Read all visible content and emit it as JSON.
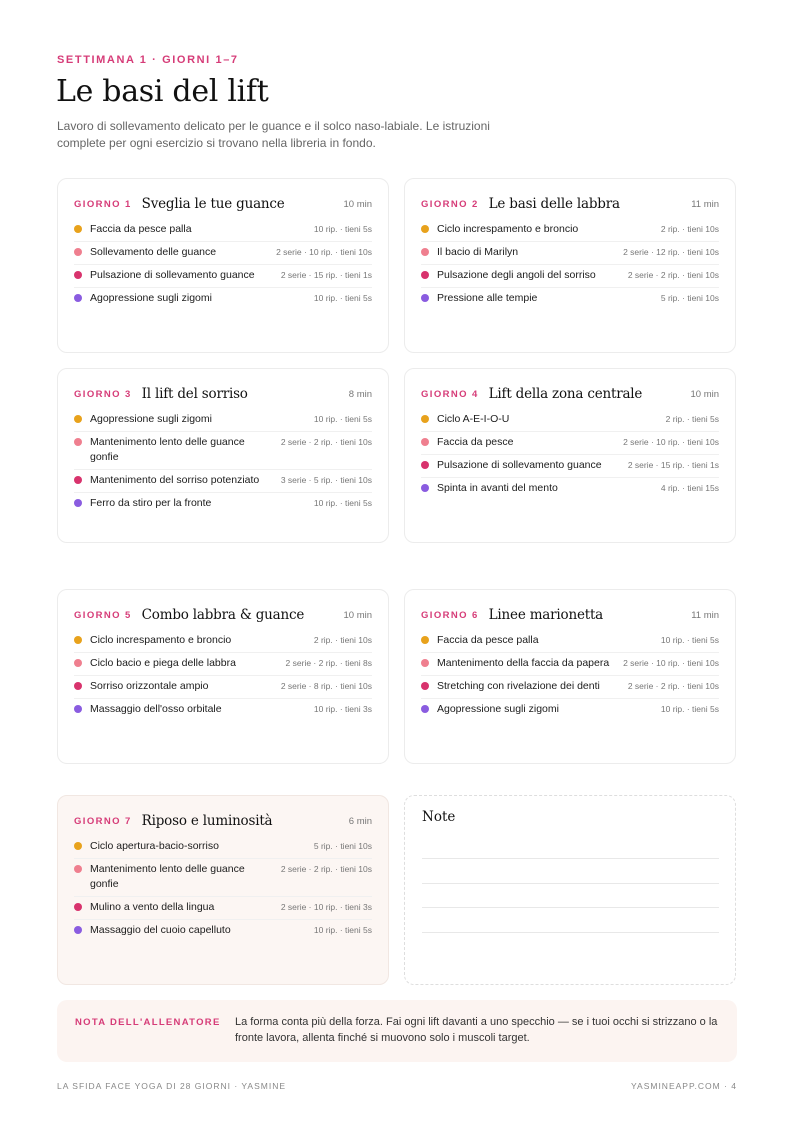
{
  "header": {
    "eyebrow": "SETTIMANA 1 · GIORNI 1–7",
    "title": "Le basi del lift",
    "intro": "Lavoro di sollevamento delicato per le guance e il solco naso-labiale. Le istruzioni complete per ogni esercizio si trovano nella libreria in fondo."
  },
  "colors": {
    "accent": "#d63c78",
    "dot_orange": "#e8a21c",
    "dot_pink": "#ef7f8f",
    "dot_magenta": "#d8336d",
    "dot_purple": "#8a5ce0"
  },
  "days": [
    {
      "label": "GIORNO 1",
      "title": "Sveglia le tue guance",
      "minutes": "10 min",
      "exercises": [
        {
          "name": "Faccia da pesce palla",
          "meta": "10 rip. · tieni 5s"
        },
        {
          "name": "Sollevamento delle guance",
          "meta": "2 serie · 10 rip. · tieni 10s"
        },
        {
          "name": "Pulsazione di sollevamento guance",
          "meta": "2 serie · 15 rip. · tieni 1s"
        },
        {
          "name": "Agopressione sugli zigomi",
          "meta": "10 rip. · tieni 5s"
        }
      ]
    },
    {
      "label": "GIORNO 2",
      "title": "Le basi delle labbra",
      "minutes": "11 min",
      "exercises": [
        {
          "name": "Ciclo increspamento e broncio",
          "meta": "2 rip. · tieni 10s"
        },
        {
          "name": "Il bacio di Marilyn",
          "meta": "2 serie · 12 rip. · tieni 10s"
        },
        {
          "name": "Pulsazione degli angoli del sorriso",
          "meta": "2 serie · 2 rip. · tieni 10s"
        },
        {
          "name": "Pressione alle tempie",
          "meta": "5 rip. · tieni 10s"
        }
      ]
    },
    {
      "label": "GIORNO 3",
      "title": "Il lift del sorriso",
      "minutes": "8 min",
      "exercises": [
        {
          "name": "Agopressione sugli zigomi",
          "meta": "10 rip. · tieni 5s"
        },
        {
          "name": "Mantenimento lento delle guance gonfie",
          "meta": "2 serie · 2 rip. · tieni 10s"
        },
        {
          "name": "Mantenimento del sorriso potenziato",
          "meta": "3 serie · 5 rip. · tieni 10s"
        },
        {
          "name": "Ferro da stiro per la fronte",
          "meta": "10 rip. · tieni 5s"
        }
      ]
    },
    {
      "label": "GIORNO 4",
      "title": "Lift della zona centrale",
      "minutes": "10 min",
      "exercises": [
        {
          "name": "Ciclo A-E-I-O-U",
          "meta": "2 rip. · tieni 5s"
        },
        {
          "name": "Faccia da pesce",
          "meta": "2 serie · 10 rip. · tieni 10s"
        },
        {
          "name": "Pulsazione di sollevamento guance",
          "meta": "2 serie · 15 rip. · tieni 1s"
        },
        {
          "name": "Spinta in avanti del mento",
          "meta": "4 rip. · tieni 15s"
        }
      ]
    },
    {
      "label": "GIORNO 5",
      "title": "Combo labbra & guance",
      "minutes": "10 min",
      "exercises": [
        {
          "name": "Ciclo increspamento e broncio",
          "meta": "2 rip. · tieni 10s"
        },
        {
          "name": "Ciclo bacio e piega delle labbra",
          "meta": "2 serie · 2 rip. · tieni 8s"
        },
        {
          "name": "Sorriso orizzontale ampio",
          "meta": "2 serie · 8 rip. · tieni 10s"
        },
        {
          "name": "Massaggio dell'osso orbitale",
          "meta": "10 rip. · tieni 3s"
        }
      ]
    },
    {
      "label": "GIORNO 6",
      "title": "Linee marionetta",
      "minutes": "11 min",
      "exercises": [
        {
          "name": "Faccia da pesce palla",
          "meta": "10 rip. · tieni 5s"
        },
        {
          "name": "Mantenimento della faccia da papera",
          "meta": "2 serie · 10 rip. · tieni 10s"
        },
        {
          "name": "Stretching con rivelazione dei denti",
          "meta": "2 serie · 2 rip. · tieni 10s"
        },
        {
          "name": "Agopressione sugli zigomi",
          "meta": "10 rip. · tieni 5s"
        }
      ]
    },
    {
      "label": "GIORNO 7",
      "title": "Riposo e luminosità",
      "minutes": "6 min",
      "exercises": [
        {
          "name": "Ciclo apertura-bacio-sorriso",
          "meta": "5 rip. · tieni 10s"
        },
        {
          "name": "Mantenimento lento delle guance gonfie",
          "meta": "2 serie · 2 rip. · tieni 10s"
        },
        {
          "name": "Mulino a vento della lingua",
          "meta": "2 serie · 10 rip. · tieni 3s"
        },
        {
          "name": "Massaggio del cuoio capelluto",
          "meta": "10 rip. · tieni 5s"
        }
      ]
    }
  ],
  "notes": {
    "title": "Note"
  },
  "coach": {
    "label": "NOTA DELL'ALLENATORE",
    "text": "La forma conta più della forza. Fai ogni lift davanti a uno specchio — se i tuoi occhi si strizzano o la fronte lavora, allenta finché si muovono solo i muscoli target."
  },
  "footer": {
    "left": "LA SFIDA FACE YOGA DI 28 GIORNI · YASMINE",
    "right": "YASMINEAPP.COM · 4"
  }
}
